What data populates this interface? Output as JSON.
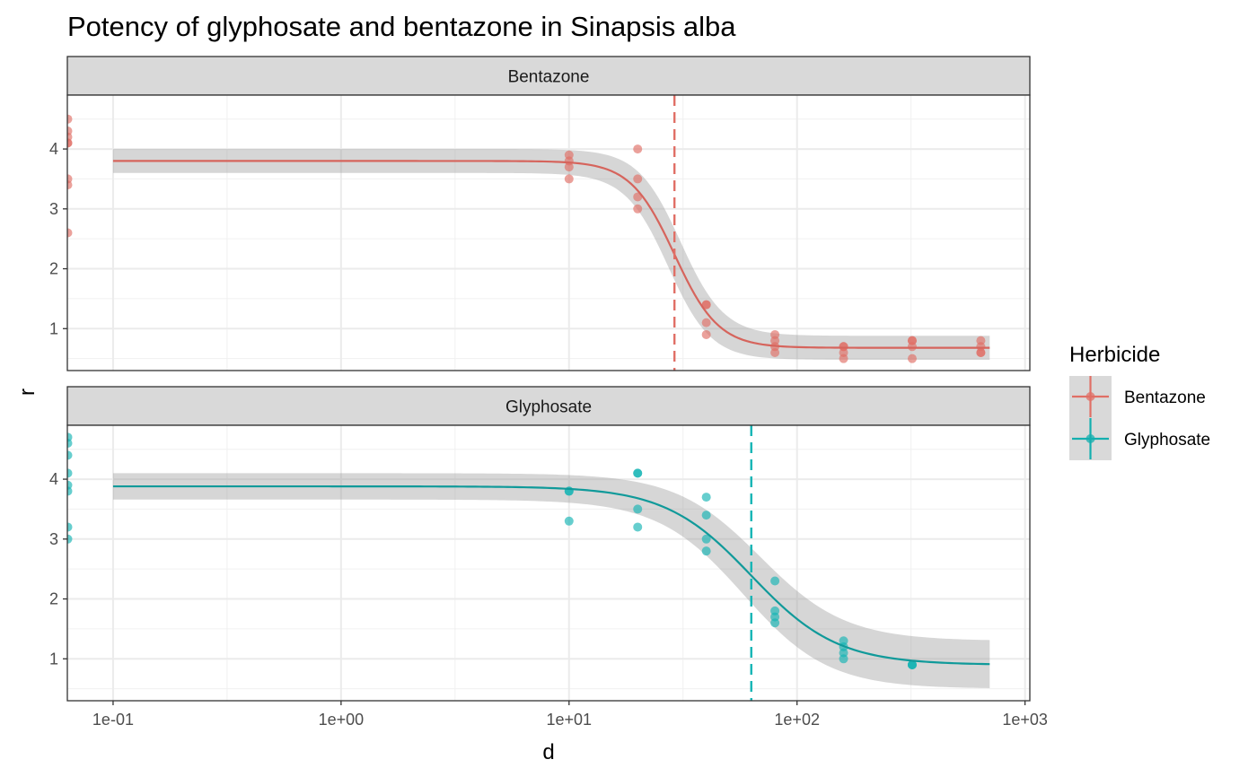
{
  "chart_data": {
    "type": "scatter",
    "title": "Potency of glyphosate and bentazone in Sinapsis alba",
    "xlabel": "d",
    "ylabel": "r",
    "x_scale": "log10",
    "x_ticks": [
      {
        "value": 0.1,
        "label": "1e-01"
      },
      {
        "value": 1,
        "label": "1e+00"
      },
      {
        "value": 10,
        "label": "1e+01"
      },
      {
        "value": 100,
        "label": "1e+02"
      },
      {
        "value": 1000,
        "label": "1e+03"
      }
    ],
    "y_ticks": [
      {
        "value": 1,
        "label": "1"
      },
      {
        "value": 2,
        "label": "2"
      },
      {
        "value": 3,
        "label": "3"
      },
      {
        "value": 4,
        "label": "4"
      }
    ],
    "xlim": [
      0.063,
      1050
    ],
    "ylim": [
      0.3,
      4.9
    ],
    "grid": true,
    "legend": {
      "title": "Herbicide",
      "position": "right",
      "entries": [
        {
          "label": "Bentazone",
          "color": "#E06F66"
        },
        {
          "label": "Glyphosate",
          "color": "#14AFAF"
        }
      ]
    },
    "panels": [
      {
        "strip": "Bentazone",
        "color": "#E06F66",
        "line_color": "#D6645C",
        "ed50": 29,
        "fit": {
          "d_upper": 3.8,
          "c_lower": 0.68,
          "slope": 4.5,
          "e": 29
        },
        "band_half_width": {
          "top": 0.2,
          "bottom": 0.2,
          "transition": 0.33
        },
        "curve_range": [
          0.1,
          700
        ],
        "zero_dose_points": [
          4.5,
          4.3,
          4.2,
          4.1,
          4.1,
          3.5,
          3.4,
          2.6
        ],
        "points": [
          {
            "d": 10,
            "r": [
              3.9,
              3.8,
              3.7,
              3.5
            ]
          },
          {
            "d": 20,
            "r": [
              4.0,
              3.5,
              3.2,
              3.0
            ]
          },
          {
            "d": 40,
            "r": [
              1.4,
              1.4,
              1.1,
              0.9
            ]
          },
          {
            "d": 80,
            "r": [
              0.9,
              0.8,
              0.7,
              0.6
            ]
          },
          {
            "d": 160,
            "r": [
              0.7,
              0.7,
              0.6,
              0.5
            ]
          },
          {
            "d": 320,
            "r": [
              0.8,
              0.8,
              0.7,
              0.5
            ]
          },
          {
            "d": 640,
            "r": [
              0.8,
              0.7,
              0.6,
              0.6
            ]
          }
        ]
      },
      {
        "strip": "Glyphosate",
        "color": "#14B4B4",
        "line_color": "#109A9A",
        "ed50": 63,
        "fit": {
          "d_upper": 3.88,
          "c_lower": 0.9,
          "slope": 2.3,
          "e": 63
        },
        "band_half_width": {
          "top": 0.22,
          "bottom": 0.4,
          "transition": 0.35
        },
        "curve_range": [
          0.1,
          700
        ],
        "zero_dose_points": [
          4.7,
          4.6,
          4.4,
          4.1,
          3.9,
          3.8,
          3.2,
          3.0
        ],
        "points": [
          {
            "d": 10,
            "r": [
              3.8,
              3.8,
              3.3
            ]
          },
          {
            "d": 20,
            "r": [
              4.1,
              4.1,
              3.5,
              3.2
            ]
          },
          {
            "d": 40,
            "r": [
              3.7,
              3.4,
              3.0,
              2.8
            ]
          },
          {
            "d": 80,
            "r": [
              2.3,
              1.8,
              1.7,
              1.6
            ]
          },
          {
            "d": 160,
            "r": [
              1.3,
              1.2,
              1.1,
              1.0
            ]
          },
          {
            "d": 320,
            "r": [
              0.9,
              0.9,
              0.9
            ]
          }
        ]
      }
    ]
  }
}
